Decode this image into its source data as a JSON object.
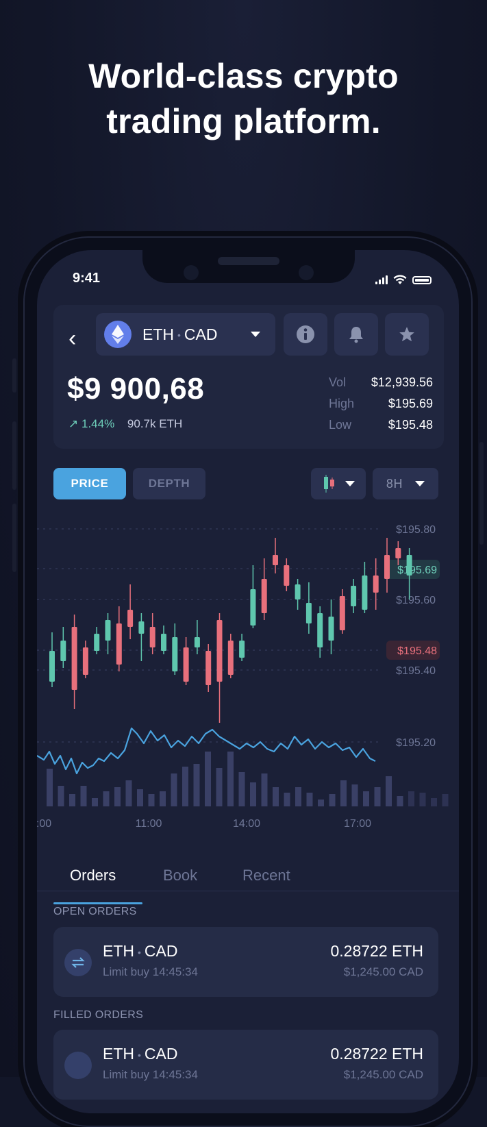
{
  "hero": {
    "line1": "World-class crypto",
    "line2": "trading platform."
  },
  "status_bar": {
    "time": "9:41"
  },
  "header": {
    "base": "ETH",
    "quote": "CAD",
    "separator": "•",
    "price": "$9 900,68",
    "change": "1.44%",
    "volume_24h": "90.7k ETH",
    "stats": [
      {
        "label": "Vol",
        "value": "$12,939.56"
      },
      {
        "label": "High",
        "value": "$195.69"
      },
      {
        "label": "Low",
        "value": "$195.48"
      }
    ],
    "icons": [
      "info-icon",
      "bell-icon",
      "star-icon"
    ]
  },
  "chart_tabs": {
    "price": "PRICE",
    "depth": "DEPTH",
    "interval": "8H"
  },
  "chart_data": {
    "type": "candlestick",
    "y_ticks": [
      "$195.80",
      "$195.60",
      "$195.40",
      "$195.20"
    ],
    "x_ticks": [
      ":00",
      "11:00",
      "14:00",
      "17:00"
    ],
    "high_label": "$195.69",
    "low_label": "$195.48",
    "colors": {
      "up": "#5fc7ae",
      "down": "#e8707c",
      "line": "#4aa3df",
      "volume": "#3a4066"
    }
  },
  "tabs": {
    "orders": "Orders",
    "book": "Book",
    "recent": "Recent"
  },
  "open_orders": {
    "title": "OPEN ORDERS",
    "items": [
      {
        "base": "ETH",
        "quote": "CAD",
        "sub": "Limit buy 14:45:34",
        "amount": "0.28722 ETH",
        "fiat": "$1,245.00 CAD"
      }
    ]
  },
  "filled_orders": {
    "title": "FILLED ORDERS",
    "items": [
      {
        "base": "ETH",
        "quote": "CAD",
        "sub": "Limit buy 14:45:34",
        "amount": "0.28722 ETH",
        "fiat": "$1,245.00 CAD"
      }
    ]
  }
}
